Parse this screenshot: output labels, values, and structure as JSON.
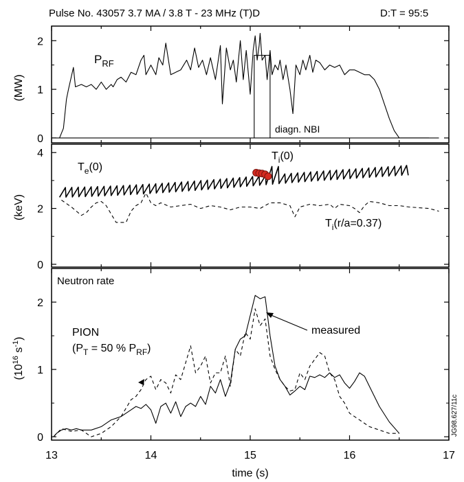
{
  "figure": {
    "title": "Pulse No. 43057  3.7 MA / 3.8 T  - 23 MHz   (T)D",
    "ratio": "D:T = 95:5",
    "xlabel": "time (s)",
    "x_ticks": [
      "13",
      "14",
      "15",
      "16",
      "17"
    ],
    "id_text": "JG98.627/11c"
  },
  "chart_data": [
    {
      "type": "line",
      "panel": "top",
      "xlim": [
        13,
        17
      ],
      "ylim": [
        -0.1,
        2.3
      ],
      "ylabel": "(MW)",
      "y_ticks": [
        "0",
        "1",
        "2"
      ],
      "labels": {
        "prf_main": "P",
        "prf_sub": "RF",
        "nbi": "diagn. NBI"
      },
      "series": [
        {
          "key": "prf",
          "style": "solid",
          "x": [
            13.08,
            13.12,
            13.15,
            13.17,
            13.22,
            13.24,
            13.3,
            13.35,
            13.4,
            13.45,
            13.5,
            13.55,
            13.6,
            13.62,
            13.66,
            13.7,
            13.75,
            13.8,
            13.85,
            13.9,
            13.93,
            13.95,
            14.0,
            14.05,
            14.08,
            14.12,
            14.15,
            14.2,
            14.25,
            14.3,
            14.33,
            14.36,
            14.4,
            14.44,
            14.48,
            14.52,
            14.56,
            14.6,
            14.65,
            14.7,
            14.72,
            14.76,
            14.8,
            14.83,
            14.86,
            14.9,
            14.93,
            14.96,
            15.0,
            15.03,
            15.05,
            15.07,
            15.09,
            15.1,
            15.12,
            15.15,
            15.17,
            15.2,
            15.22,
            15.25,
            15.28,
            15.3,
            15.33,
            15.36,
            15.4,
            15.43,
            15.46,
            15.5,
            15.53,
            15.56,
            15.6,
            15.63,
            15.66,
            15.7,
            15.75,
            15.8,
            15.85,
            15.9,
            15.95,
            16.0,
            16.05,
            16.1,
            16.15,
            16.2,
            16.25,
            16.3,
            16.35,
            16.4,
            16.45,
            16.5,
            16.52,
            16.6,
            16.8
          ],
          "values": [
            0.0,
            0.2,
            0.8,
            1.0,
            1.45,
            1.05,
            1.1,
            1.05,
            1.1,
            1.0,
            1.15,
            1.0,
            1.1,
            1.05,
            1.2,
            1.25,
            1.15,
            1.35,
            1.3,
            1.6,
            1.7,
            1.3,
            1.5,
            1.3,
            1.65,
            1.5,
            1.95,
            1.3,
            1.35,
            1.4,
            1.5,
            1.6,
            1.4,
            1.85,
            1.45,
            1.6,
            1.3,
            1.65,
            1.2,
            1.9,
            0.7,
            1.85,
            1.4,
            1.6,
            1.15,
            2.0,
            1.2,
            1.8,
            0.9,
            1.8,
            2.1,
            1.6,
            1.9,
            2.15,
            1.6,
            1.7,
            1.2,
            1.8,
            1.3,
            1.5,
            1.4,
            1.6,
            1.2,
            1.5,
            1.0,
            0.5,
            1.5,
            1.3,
            1.6,
            1.4,
            1.7,
            1.35,
            1.6,
            1.55,
            1.4,
            1.5,
            1.45,
            1.5,
            1.3,
            1.4,
            1.4,
            1.35,
            1.3,
            1.3,
            1.2,
            1.0,
            0.7,
            0.4,
            0.15,
            0.0,
            0.0,
            0.0,
            0.0
          ]
        },
        {
          "key": "nbi",
          "style": "solid",
          "x": [
            15.04,
            15.04,
            15.1,
            15.1,
            15.2,
            15.2
          ],
          "values": [
            0,
            1.7,
            1.7,
            1.7,
            1.7,
            0
          ]
        },
        {
          "key": "baseline",
          "style": "solid",
          "x": [
            13.0,
            16.9
          ],
          "values": [
            0,
            0
          ]
        }
      ]
    },
    {
      "type": "line",
      "panel": "middle",
      "xlim": [
        13,
        17
      ],
      "ylim": [
        -0.1,
        4.3
      ],
      "ylabel": "(keV)",
      "y_ticks": [
        "0",
        "2",
        "4"
      ],
      "labels": {
        "te_main": "T",
        "te_sub": "e",
        "te_tail": "(0)",
        "ti_main": "T",
        "ti_sub": "i",
        "ti_tail": "(0)",
        "tir_main": "T",
        "tir_sub": "i",
        "tir_tail": "(r/a=0.37)"
      },
      "series": [
        {
          "key": "te0",
          "style": "sawtooth",
          "x_start": 13.08,
          "x_end": 16.58,
          "period": 0.065,
          "low_start": 2.4,
          "low_end": 2.65,
          "amp": 0.35,
          "peak_extra_x": 15.22,
          "peak_extra_y": 3.5
        },
        {
          "key": "ti_r",
          "style": "dashed",
          "x": [
            13.1,
            13.2,
            13.3,
            13.35,
            13.4,
            13.45,
            13.5,
            13.55,
            13.6,
            13.65,
            13.7,
            13.75,
            13.8,
            13.85,
            13.9,
            13.95,
            14.0,
            14.05,
            14.1,
            14.2,
            14.3,
            14.4,
            14.5,
            14.6,
            14.7,
            14.8,
            14.9,
            15.0,
            15.1,
            15.2,
            15.3,
            15.35,
            15.4,
            15.45,
            15.5,
            15.6,
            15.7,
            15.8,
            15.85,
            15.9,
            16.0,
            16.05,
            16.1,
            16.15,
            16.2,
            16.3,
            16.4,
            16.5,
            16.6,
            16.8,
            16.9
          ],
          "values": [
            2.3,
            2.05,
            1.75,
            1.85,
            2.05,
            2.2,
            2.25,
            2.1,
            1.8,
            1.5,
            1.5,
            1.5,
            1.9,
            2.1,
            2.2,
            2.55,
            2.2,
            2.1,
            2.2,
            2.05,
            2.1,
            2.15,
            2.0,
            2.1,
            2.05,
            1.95,
            2.05,
            2.05,
            2.0,
            2.2,
            2.2,
            2.15,
            2.1,
            1.7,
            2.05,
            2.15,
            2.1,
            2.15,
            2.0,
            2.15,
            2.1,
            2.0,
            1.85,
            2.1,
            2.25,
            2.2,
            2.1,
            2.1,
            2.05,
            2.0,
            1.9
          ]
        },
        {
          "key": "ti0",
          "style": "markers",
          "x": [
            15.06,
            15.09,
            15.12,
            15.15,
            15.18
          ],
          "values": [
            3.28,
            3.26,
            3.25,
            3.22,
            3.15
          ]
        }
      ]
    },
    {
      "type": "line",
      "panel": "bottom",
      "xlim": [
        13,
        17
      ],
      "ylim": [
        -0.05,
        2.5
      ],
      "ylabel": "(10¹⁶ s⁻¹)",
      "y_ticks": [
        "0",
        "1",
        "2"
      ],
      "labels": {
        "title": "Neutron rate",
        "pion_line1": "PION",
        "pion_line2_pre": "(P",
        "pion_line2_t": "T",
        "pion_line2_mid": " = 50 % P",
        "pion_line2_rf": "RF",
        "pion_line2_end": ")",
        "measured": "measured"
      },
      "series": [
        {
          "key": "measured",
          "style": "solid",
          "x": [
            13.02,
            13.05,
            13.1,
            13.15,
            13.2,
            13.25,
            13.3,
            13.4,
            13.5,
            13.6,
            13.7,
            13.8,
            13.85,
            13.9,
            13.95,
            14.0,
            14.05,
            14.1,
            14.15,
            14.2,
            14.25,
            14.3,
            14.35,
            14.4,
            14.45,
            14.5,
            14.55,
            14.6,
            14.65,
            14.7,
            14.75,
            14.8,
            14.85,
            14.9,
            14.95,
            15.0,
            15.05,
            15.1,
            15.15,
            15.2,
            15.25,
            15.3,
            15.35,
            15.4,
            15.45,
            15.5,
            15.55,
            15.6,
            15.65,
            15.7,
            15.75,
            15.8,
            15.85,
            15.9,
            15.95,
            16.0,
            16.05,
            16.1,
            16.15,
            16.2,
            16.3,
            16.4,
            16.5
          ],
          "values": [
            0.0,
            0.05,
            0.1,
            0.12,
            0.1,
            0.12,
            0.1,
            0.1,
            0.15,
            0.25,
            0.3,
            0.4,
            0.45,
            0.42,
            0.48,
            0.4,
            0.2,
            0.45,
            0.5,
            0.35,
            0.52,
            0.3,
            0.45,
            0.5,
            0.45,
            0.6,
            0.48,
            0.75,
            0.65,
            0.85,
            0.6,
            0.8,
            1.3,
            1.45,
            1.5,
            1.8,
            2.1,
            2.05,
            2.08,
            1.5,
            1.05,
            0.85,
            0.75,
            0.62,
            0.68,
            0.75,
            0.7,
            0.9,
            0.88,
            0.92,
            0.88,
            0.95,
            0.88,
            0.92,
            0.8,
            0.72,
            0.82,
            0.95,
            0.9,
            0.75,
            0.45,
            0.22,
            0.05
          ]
        },
        {
          "key": "pion",
          "style": "dashed",
          "x": [
            13.02,
            13.1,
            13.2,
            13.3,
            13.4,
            13.5,
            13.6,
            13.7,
            13.8,
            13.85,
            13.9,
            13.95,
            14.0,
            14.05,
            14.1,
            14.15,
            14.2,
            14.25,
            14.3,
            14.35,
            14.4,
            14.45,
            14.5,
            14.55,
            14.6,
            14.65,
            14.7,
            14.75,
            14.8,
            14.85,
            14.9,
            14.95,
            15.0,
            15.05,
            15.1,
            15.15,
            15.2,
            15.25,
            15.3,
            15.35,
            15.4,
            15.45,
            15.5,
            15.55,
            15.6,
            15.65,
            15.7,
            15.75,
            15.8,
            15.85,
            15.9,
            15.95,
            16.0,
            16.1,
            16.2,
            16.3,
            16.4,
            16.5
          ],
          "values": [
            0.0,
            0.12,
            0.08,
            0.1,
            0.0,
            0.05,
            0.15,
            0.3,
            0.55,
            0.6,
            0.7,
            0.85,
            0.9,
            0.7,
            0.85,
            0.8,
            0.65,
            0.92,
            0.85,
            1.1,
            1.35,
            0.95,
            1.05,
            1.2,
            0.8,
            0.95,
            0.95,
            1.2,
            0.75,
            1.3,
            1.2,
            1.55,
            1.45,
            1.9,
            1.65,
            1.75,
            1.2,
            1.0,
            0.85,
            0.75,
            0.68,
            0.7,
            0.95,
            0.85,
            1.05,
            1.15,
            1.25,
            1.2,
            0.95,
            0.85,
            0.6,
            0.5,
            0.35,
            0.25,
            0.15,
            0.1,
            0.05,
            0.05
          ]
        }
      ]
    }
  ]
}
